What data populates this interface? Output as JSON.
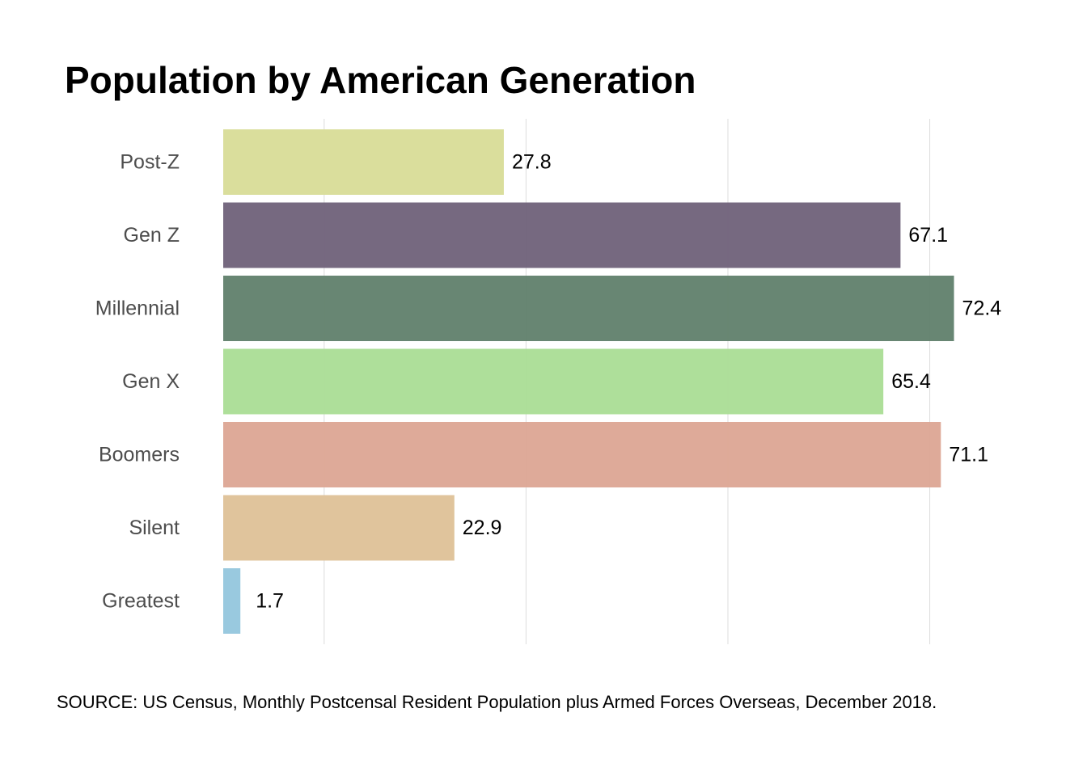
{
  "chart_data": {
    "type": "bar",
    "orientation": "horizontal",
    "title": "Population by American Generation",
    "caption": "SOURCE: US Census, Monthly Postcensal Resident Population plus Armed Forces Overseas, December 2018.",
    "xlabel": "",
    "ylabel": "",
    "xlim": [
      0,
      80
    ],
    "grid": true,
    "legend": "none",
    "categories": [
      "Post-Z",
      "Gen Z",
      "Millennial",
      "Gen X",
      "Boomers",
      "Silent",
      "Greatest"
    ],
    "values": [
      27.8,
      67.1,
      72.4,
      65.4,
      71.1,
      22.9,
      1.7
    ],
    "value_labels": [
      "27.8",
      "67.1",
      "72.4",
      "65.4",
      "71.1",
      "22.9",
      "1.7"
    ],
    "colors": [
      "#d8dc97",
      "#6f6179",
      "#607f6b",
      "#aadd95",
      "#dca594",
      "#dec197",
      "#93c6dd"
    ]
  }
}
